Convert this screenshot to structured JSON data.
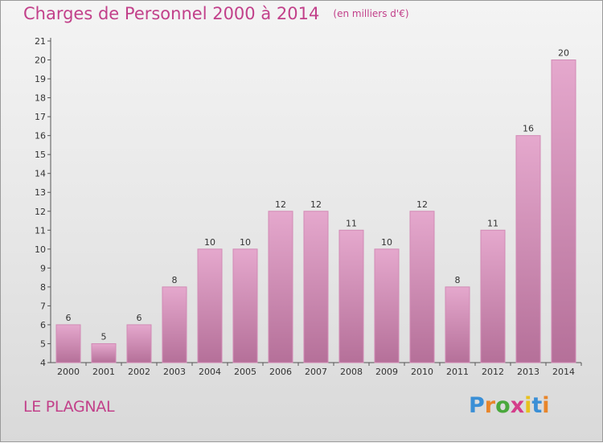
{
  "chart_data": {
    "type": "bar",
    "title": "Charges de Personnel 2000 à 2014",
    "subtitle": "(en milliers d'€)",
    "categories": [
      "2000",
      "2001",
      "2002",
      "2003",
      "2004",
      "2005",
      "2006",
      "2007",
      "2008",
      "2009",
      "2010",
      "2011",
      "2012",
      "2013",
      "2014"
    ],
    "values": [
      6,
      5,
      6,
      8,
      10,
      10,
      12,
      12,
      11,
      10,
      12,
      8,
      11,
      16,
      20
    ],
    "yticks": [
      "4",
      "5",
      "6",
      "7",
      "8",
      "9",
      "10",
      "11",
      "12",
      "13",
      "14",
      "15",
      "16",
      "17",
      "18",
      "19",
      "20",
      "21"
    ],
    "ylim": [
      4,
      21
    ],
    "grid": false,
    "legend": "none",
    "colors": {
      "bar_top": "#e5a8cd",
      "bar_bottom": "#b57099",
      "bar_edge": "#d28ab5",
      "title": "#c2408a",
      "axis": "#555555"
    }
  },
  "commune": "LE PLAGNAL",
  "logo": {
    "letters": [
      "P",
      "r",
      "o",
      "x",
      "i",
      "t",
      "i"
    ],
    "colors": [
      "#3a8fd6",
      "#e8852a",
      "#4aa83c",
      "#d43c8a",
      "#e8c21e",
      "#3a8fd6",
      "#e8852a"
    ]
  }
}
